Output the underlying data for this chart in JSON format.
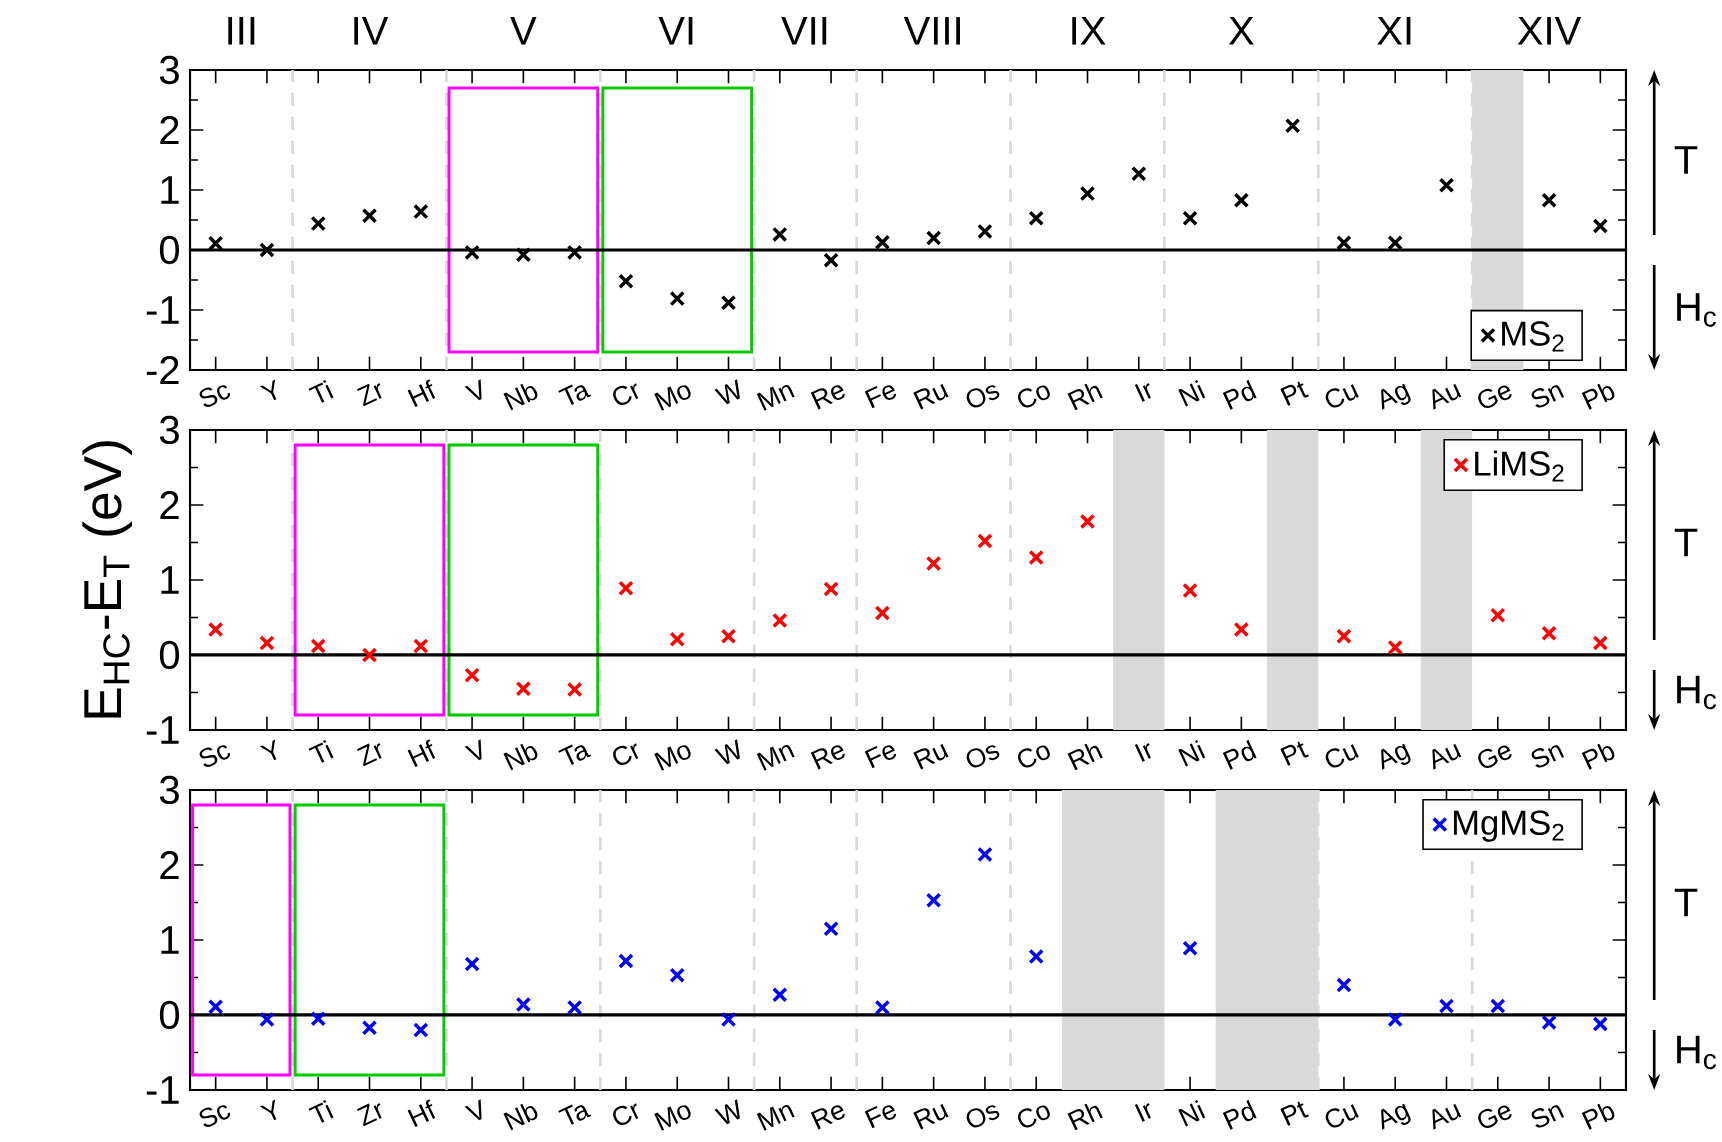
{
  "chart_data": [
    {
      "type": "scatter",
      "categories": [
        "Sc",
        "Y",
        "Ti",
        "Zr",
        "Hf",
        "V",
        "Nb",
        "Ta",
        "Cr",
        "Mo",
        "W",
        "Mn",
        "Re",
        "Fe",
        "Ru",
        "Os",
        "Co",
        "Rh",
        "Ir",
        "Ni",
        "Pd",
        "Pt",
        "Cu",
        "Ag",
        "Au",
        "Ge",
        "Sn",
        "Pb"
      ],
      "series": [
        {
          "name": "MS$_{2}$",
          "color": "#000000",
          "values": [
            0.11,
            0.0,
            0.44,
            0.57,
            0.64,
            -0.04,
            -0.08,
            -0.04,
            -0.52,
            -0.81,
            -0.88,
            0.26,
            -0.17,
            0.13,
            0.2,
            0.31,
            0.53,
            0.94,
            1.27,
            0.53,
            0.83,
            2.07,
            0.12,
            0.12,
            1.08,
            null,
            0.83,
            0.4
          ]
        }
      ],
      "ylim": [
        -2,
        3
      ],
      "yticks": [
        -2,
        -1,
        0,
        1,
        2,
        3
      ],
      "marker": "cross",
      "legend": "bottom right",
      "bands": [
        {
          "axis": "x",
          "from": "Ge",
          "to": "Ge",
          "color": "#d9d9d9"
        }
      ],
      "ref_lines": [
        {
          "axis": "y",
          "value": 0,
          "color": "#000000",
          "line_style": "solid"
        }
      ],
      "annotations": [
        "III",
        "IV",
        "V",
        "VI",
        "VII",
        "VIII",
        "IX",
        "X",
        "XI",
        "XIV",
        "T",
        "H$_{c}$"
      ]
    },
    {
      "type": "scatter",
      "categories": [
        "Sc",
        "Y",
        "Ti",
        "Zr",
        "Hf",
        "V",
        "Nb",
        "Ta",
        "Cr",
        "Mo",
        "W",
        "Mn",
        "Re",
        "Fe",
        "Ru",
        "Os",
        "Co",
        "Rh",
        "Ir",
        "Ni",
        "Pd",
        "Pt",
        "Cu",
        "Ag",
        "Au",
        "Ge",
        "Sn",
        "Pb"
      ],
      "series": [
        {
          "name": "LiMS$_{2}$",
          "color": "#ff0000",
          "values": [
            0.34,
            0.16,
            0.12,
            0.0,
            0.12,
            -0.27,
            -0.45,
            -0.46,
            0.89,
            0.21,
            0.25,
            0.46,
            0.88,
            0.56,
            1.22,
            1.52,
            1.3,
            1.78,
            null,
            0.86,
            0.34,
            null,
            0.25,
            0.1,
            null,
            0.53,
            0.29,
            0.16
          ]
        }
      ],
      "ylim": [
        -1,
        3
      ],
      "yticks": [
        -1,
        0,
        1,
        2,
        3
      ],
      "marker": "cross",
      "legend": "top right",
      "ylabel": "E$_{HC}$-E$_{T}$ (eV)",
      "bands": [
        {
          "axis": "x",
          "from": "Ir",
          "to": "Ir",
          "color": "#d9d9d9"
        },
        {
          "axis": "x",
          "from": "Pt",
          "to": "Pt",
          "color": "#d9d9d9"
        },
        {
          "axis": "x",
          "from": "Au",
          "to": "Au",
          "color": "#d9d9d9"
        }
      ],
      "ref_lines": [
        {
          "axis": "y",
          "value": 0,
          "color": "#000000",
          "line_style": "solid"
        }
      ],
      "annotations": [
        "T",
        "H$_{c}$"
      ]
    },
    {
      "type": "scatter",
      "categories": [
        "Sc",
        "Y",
        "Ti",
        "Zr",
        "Hf",
        "V",
        "Nb",
        "Ta",
        "Cr",
        "Mo",
        "W",
        "Mn",
        "Re",
        "Fe",
        "Ru",
        "Os",
        "Co",
        "Rh",
        "Ir",
        "Ni",
        "Pd",
        "Pt",
        "Cu",
        "Ag",
        "Au",
        "Ge",
        "Sn",
        "Pb"
      ],
      "series": [
        {
          "name": "MgMS$_{2}$",
          "color": "#0000ff",
          "values": [
            0.11,
            -0.06,
            -0.05,
            -0.17,
            -0.2,
            0.68,
            0.14,
            0.1,
            0.72,
            0.53,
            -0.06,
            0.27,
            1.15,
            0.1,
            1.53,
            2.14,
            0.78,
            null,
            null,
            0.89,
            null,
            null,
            0.4,
            -0.06,
            0.12,
            0.12,
            -0.1,
            -0.12
          ]
        }
      ],
      "ylim": [
        -1,
        3
      ],
      "yticks": [
        -1,
        0,
        1,
        2,
        3
      ],
      "marker": "cross",
      "legend": "top right",
      "bands": [
        {
          "axis": "x",
          "from": "Rh",
          "to": "Ir",
          "color": "#d9d9d9"
        },
        {
          "axis": "x",
          "from": "Pd",
          "to": "Pt",
          "color": "#d9d9d9"
        }
      ],
      "ref_lines": [
        {
          "axis": "y",
          "value": 0,
          "color": "#000000",
          "line_style": "solid"
        }
      ],
      "annotations": [
        "T",
        "H$_{c}$"
      ]
    }
  ]
}
